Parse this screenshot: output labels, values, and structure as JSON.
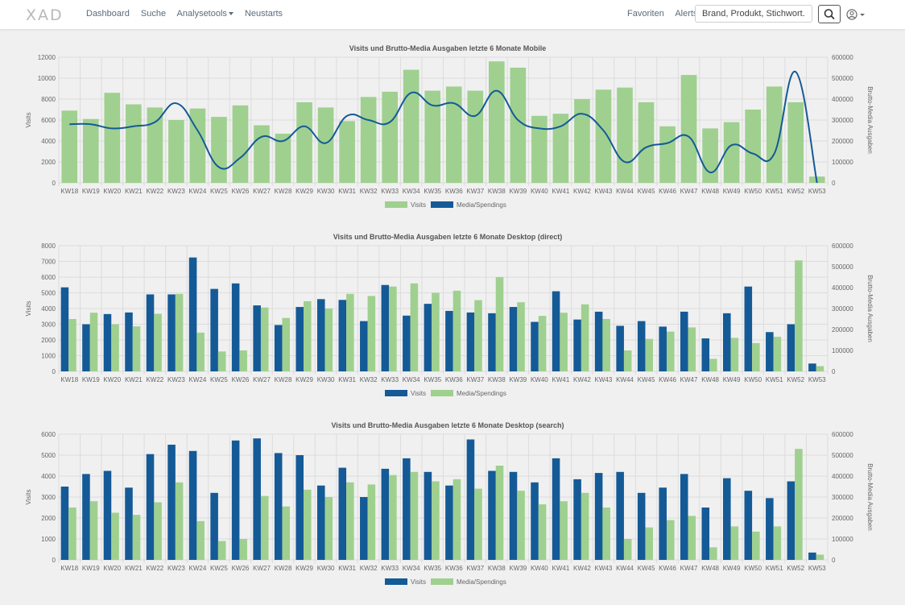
{
  "nav": {
    "logo": "XAD",
    "items": [
      "Dashboard",
      "Suche",
      "Analysetools",
      "Neustarts"
    ],
    "right_items": [
      "Favoriten",
      "Alerts"
    ],
    "search_placeholder": "Brand, Produkt, Stichwort..."
  },
  "colors": {
    "green": "#9fd08f",
    "blue": "#145a97",
    "grid": "#dcdcdc",
    "text": "#666666"
  },
  "chart_data": [
    {
      "type": "bar",
      "title": "Visits und Brutto-Media Ausgaben letzte 6 Monate Mobile",
      "ylabel": "Visits",
      "y2label": "Brutto-Media Ausgaben",
      "ylim": [
        0,
        12000
      ],
      "yticks": [
        0,
        2000,
        4000,
        6000,
        8000,
        10000,
        12000
      ],
      "y2lim": [
        0,
        600000
      ],
      "y2ticks": [
        0,
        100000,
        200000,
        300000,
        400000,
        500000,
        600000
      ],
      "categories": [
        "KW18",
        "KW19",
        "KW20",
        "KW21",
        "KW22",
        "KW23",
        "KW24",
        "KW25",
        "KW26",
        "KW27",
        "KW28",
        "KW29",
        "KW30",
        "KW31",
        "KW32",
        "KW33",
        "KW34",
        "KW35",
        "KW36",
        "KW37",
        "KW38",
        "KW39",
        "KW40",
        "KW41",
        "KW42",
        "KW43",
        "KW44",
        "KW45",
        "KW46",
        "KW47",
        "KW48",
        "KW49",
        "KW50",
        "KW51",
        "KW52",
        "KW53"
      ],
      "legend": [
        "Visits",
        "Media/Spendings"
      ],
      "series": [
        {
          "name": "Visits",
          "kind": "bar",
          "axis": "left",
          "color": "#9fd08f",
          "values": [
            6900,
            6100,
            8600,
            7500,
            7200,
            6000,
            7100,
            6300,
            7400,
            5500,
            4700,
            7700,
            7200,
            5900,
            8200,
            8700,
            10800,
            8800,
            9200,
            8800,
            11600,
            11000,
            6400,
            6600,
            8000,
            8900,
            9100,
            7700,
            5400,
            10300,
            5200,
            5800,
            7000,
            9200,
            7700,
            600
          ]
        },
        {
          "name": "Media/Spendings",
          "kind": "line",
          "axis": "right",
          "color": "#145a97",
          "values": [
            280000,
            280000,
            260000,
            270000,
            290000,
            380000,
            250000,
            75000,
            120000,
            220000,
            200000,
            270000,
            190000,
            320000,
            300000,
            290000,
            430000,
            370000,
            380000,
            320000,
            440000,
            300000,
            260000,
            270000,
            330000,
            250000,
            100000,
            170000,
            190000,
            220000,
            50000,
            180000,
            140000,
            140000,
            530000,
            0
          ]
        }
      ]
    },
    {
      "type": "bar",
      "title": "Visits und Brutto-Media Ausgaben letzte 6 Monate Desktop (direct)",
      "ylabel": "Visits",
      "y2label": "Brutto-Media Ausgaben",
      "ylim": [
        0,
        8000
      ],
      "yticks": [
        0,
        1000,
        2000,
        3000,
        4000,
        5000,
        6000,
        7000,
        8000
      ],
      "y2lim": [
        0,
        600000
      ],
      "y2ticks": [
        0,
        100000,
        200000,
        300000,
        400000,
        500000,
        600000
      ],
      "categories": [
        "KW18",
        "KW19",
        "KW20",
        "KW21",
        "KW22",
        "KW23",
        "KW24",
        "KW25",
        "KW26",
        "KW27",
        "KW28",
        "KW29",
        "KW30",
        "KW31",
        "KW32",
        "KW33",
        "KW34",
        "KW35",
        "KW36",
        "KW37",
        "KW38",
        "KW39",
        "KW40",
        "KW41",
        "KW42",
        "KW43",
        "KW44",
        "KW45",
        "KW46",
        "KW47",
        "KW48",
        "KW49",
        "KW50",
        "KW51",
        "KW52",
        "KW53"
      ],
      "legend": [
        "Visits",
        "Media/Spendings"
      ],
      "series": [
        {
          "name": "Visits",
          "kind": "bar",
          "axis": "left",
          "color": "#145a97",
          "values": [
            5350,
            3000,
            3650,
            3750,
            4900,
            4900,
            7250,
            5250,
            5600,
            4200,
            2950,
            4100,
            4600,
            4550,
            3200,
            5500,
            3550,
            4300,
            3850,
            3750,
            3700,
            4100,
            3150,
            5100,
            3300,
            3800,
            2900,
            3200,
            2850,
            3800,
            2100,
            3700,
            5400,
            2500,
            3000,
            500
          ]
        },
        {
          "name": "Media/Spendings",
          "kind": "bar",
          "axis": "right",
          "color": "#9fd08f",
          "values": [
            250000,
            280000,
            225000,
            215000,
            275000,
            370000,
            185000,
            95000,
            100000,
            305000,
            255000,
            335000,
            300000,
            370000,
            360000,
            405000,
            420000,
            375000,
            385000,
            340000,
            450000,
            330000,
            265000,
            280000,
            320000,
            250000,
            100000,
            155000,
            190000,
            210000,
            60000,
            160000,
            135000,
            165000,
            530000,
            25000
          ]
        }
      ]
    },
    {
      "type": "bar",
      "title": "Visits und Brutto-Media Ausgaben letzte 6 Monate Desktop (search)",
      "ylabel": "Visits",
      "y2label": "Brutto-Media Ausgaben",
      "ylim": [
        0,
        6000
      ],
      "yticks": [
        0,
        1000,
        2000,
        3000,
        4000,
        5000,
        6000
      ],
      "y2lim": [
        0,
        600000
      ],
      "y2ticks": [
        0,
        100000,
        200000,
        300000,
        400000,
        500000,
        600000
      ],
      "categories": [
        "KW18",
        "KW19",
        "KW20",
        "KW21",
        "KW22",
        "KW23",
        "KW24",
        "KW25",
        "KW26",
        "KW27",
        "KW28",
        "KW29",
        "KW30",
        "KW31",
        "KW32",
        "KW33",
        "KW34",
        "KW35",
        "KW36",
        "KW37",
        "KW38",
        "KW39",
        "KW40",
        "KW41",
        "KW42",
        "KW43",
        "KW44",
        "KW45",
        "KW46",
        "KW47",
        "KW48",
        "KW49",
        "KW50",
        "KW51",
        "KW52",
        "KW53"
      ],
      "legend": [
        "Visits",
        "Media/Spendings"
      ],
      "series": [
        {
          "name": "Visits",
          "kind": "bar",
          "axis": "left",
          "color": "#145a97",
          "values": [
            3500,
            4100,
            4250,
            3450,
            5050,
            5500,
            5200,
            3200,
            5700,
            5800,
            5100,
            5000,
            3550,
            4400,
            3000,
            4350,
            4850,
            4200,
            3550,
            5750,
            4250,
            4200,
            3700,
            4850,
            3850,
            4150,
            4200,
            3200,
            3450,
            4100,
            2500,
            3900,
            3300,
            2950,
            3750,
            350
          ]
        },
        {
          "name": "Media/Spendings",
          "kind": "bar",
          "axis": "right",
          "color": "#9fd08f",
          "values": [
            250000,
            280000,
            225000,
            215000,
            275000,
            370000,
            185000,
            90000,
            100000,
            305000,
            255000,
            335000,
            300000,
            370000,
            360000,
            405000,
            420000,
            375000,
            385000,
            340000,
            450000,
            330000,
            265000,
            280000,
            320000,
            250000,
            100000,
            155000,
            190000,
            210000,
            60000,
            160000,
            135000,
            160000,
            530000,
            25000
          ]
        }
      ]
    }
  ]
}
